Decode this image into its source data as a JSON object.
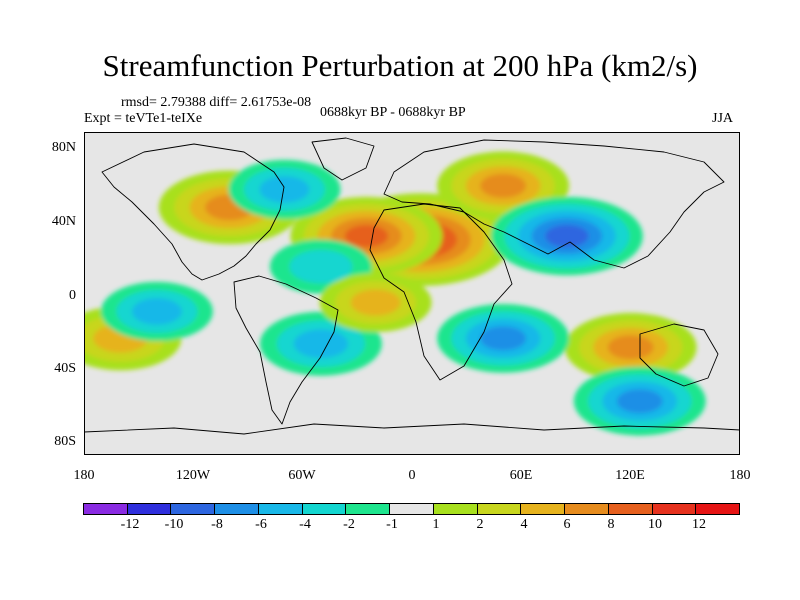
{
  "title": "Streamfunction Perturbation at 200 hPa (km2/s)",
  "stats": "rmsd= 2.79388 diff= 2.61753e-08",
  "experiment": "Expt = teVTe1-teIXe",
  "period": "0688kyr BP - 0688kyr BP",
  "season": "JJA",
  "y_axis_labels": [
    "80N",
    "40N",
    "0",
    "40S",
    "80S"
  ],
  "x_axis_labels": [
    "180",
    "120W",
    "60W",
    "0",
    "60E",
    "120E",
    "180"
  ],
  "colorbar": {
    "labels": [
      "-12",
      "-10",
      "-8",
      "-6",
      "-4",
      "-2",
      "-1",
      "1",
      "2",
      "4",
      "6",
      "8",
      "10",
      "12"
    ],
    "colors": [
      "#8a2be2",
      "#2f2fdd",
      "#2d66e0",
      "#1e8fe6",
      "#19b8e8",
      "#13d6d0",
      "#1ee58e",
      "#e6e6e6",
      "#a8e01e",
      "#c8d61e",
      "#e6b31e",
      "#e68c1e",
      "#e6601e",
      "#e6321e",
      "#e61414"
    ]
  },
  "chart_data": {
    "type": "heatmap",
    "title": "Streamfunction Perturbation at 200 hPa (km2/s)",
    "projection": "cylindrical equidistant",
    "lon_range": [
      -180,
      180
    ],
    "lat_range": [
      -90,
      90
    ],
    "x_ticks": [
      "180",
      "120W",
      "60W",
      "0",
      "60E",
      "120E",
      "180"
    ],
    "y_ticks": [
      "80N",
      "40N",
      "0",
      "40S",
      "80S"
    ],
    "contour_levels": [
      -12,
      -10,
      -8,
      -6,
      -4,
      -2,
      -1,
      1,
      2,
      4,
      6,
      8,
      10,
      12
    ],
    "rmsd": 2.79388,
    "diff": 2.61753e-08,
    "features": [
      {
        "lon": 5,
        "lat": 30,
        "value": 11
      },
      {
        "lon": -25,
        "lat": 32,
        "value": 8
      },
      {
        "lon": -100,
        "lat": 48,
        "value": 7
      },
      {
        "lon": 50,
        "lat": 60,
        "value": 6
      },
      {
        "lon": 120,
        "lat": -30,
        "value": 6
      },
      {
        "lon": -160,
        "lat": -25,
        "value": 5
      },
      {
        "lon": 85,
        "lat": 32,
        "value": -8
      },
      {
        "lon": 50,
        "lat": -25,
        "value": -6
      },
      {
        "lon": -50,
        "lat": -28,
        "value": -5
      },
      {
        "lon": 125,
        "lat": -60,
        "value": -6
      },
      {
        "lon": -140,
        "lat": -10,
        "value": -4
      },
      {
        "lon": -70,
        "lat": 58,
        "value": -4
      },
      {
        "lon": -50,
        "lat": 15,
        "value": -3
      },
      {
        "lon": -20,
        "lat": -5,
        "value": 4
      }
    ]
  }
}
